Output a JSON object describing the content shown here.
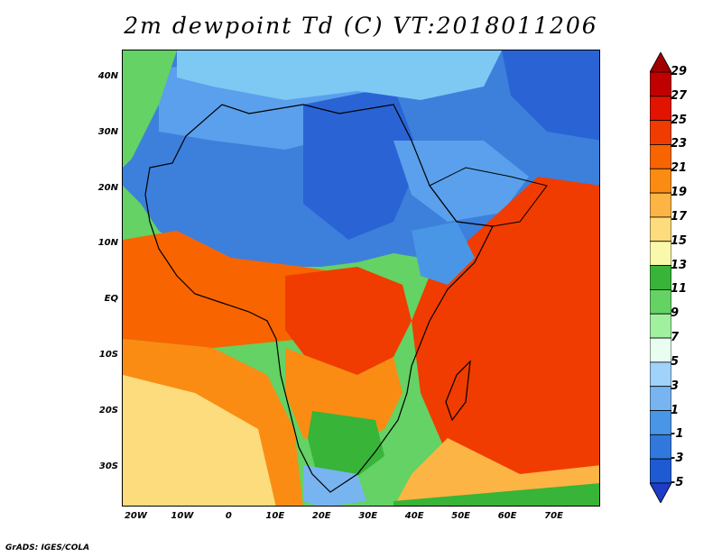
{
  "title": "2m dewpoint Td (C) VT:2018011206",
  "credit": "GrADS: IGES/COLA",
  "map": {
    "variable": "2m dewpoint Td",
    "units": "C",
    "valid_time": "2018011206",
    "lon_range": [
      -23,
      80
    ],
    "lat_range": [
      -37,
      45
    ],
    "lat_labels": [
      {
        "text": "40N",
        "lat": 40
      },
      {
        "text": "30N",
        "lat": 30
      },
      {
        "text": "20N",
        "lat": 20
      },
      {
        "text": "10N",
        "lat": 10
      },
      {
        "text": "EQ",
        "lat": 0
      },
      {
        "text": "10S",
        "lat": -10
      },
      {
        "text": "20S",
        "lat": -20
      },
      {
        "text": "30S",
        "lat": -30
      }
    ],
    "lon_labels": [
      {
        "text": "20W",
        "lon": -20
      },
      {
        "text": "10W",
        "lon": -10
      },
      {
        "text": "0",
        "lon": 0
      },
      {
        "text": "10E",
        "lon": 10
      },
      {
        "text": "20E",
        "lon": 20
      },
      {
        "text": "30E",
        "lon": 30
      },
      {
        "text": "40E",
        "lon": 40
      },
      {
        "text": "50E",
        "lon": 50
      },
      {
        "text": "60E",
        "lon": 60
      },
      {
        "text": "70E",
        "lon": 70
      }
    ]
  },
  "colorbar": {
    "labels": [
      "29",
      "27",
      "25",
      "23",
      "21",
      "19",
      "17",
      "15",
      "13",
      "11",
      "9",
      "7",
      "5",
      "3",
      "1",
      "-1",
      "-3",
      "-5"
    ],
    "colors": [
      "#a00000",
      "#c00000",
      "#e11400",
      "#f03c00",
      "#f86400",
      "#fa8c14",
      "#fcb444",
      "#fcdc7c",
      "#faf8aa",
      "#38b438",
      "#64d264",
      "#a0f0a0",
      "#e8fff0",
      "#a0d2fa",
      "#78b4f0",
      "#4a96e6",
      "#3278dc",
      "#1e5ad2",
      "#1e3cc8"
    ]
  }
}
